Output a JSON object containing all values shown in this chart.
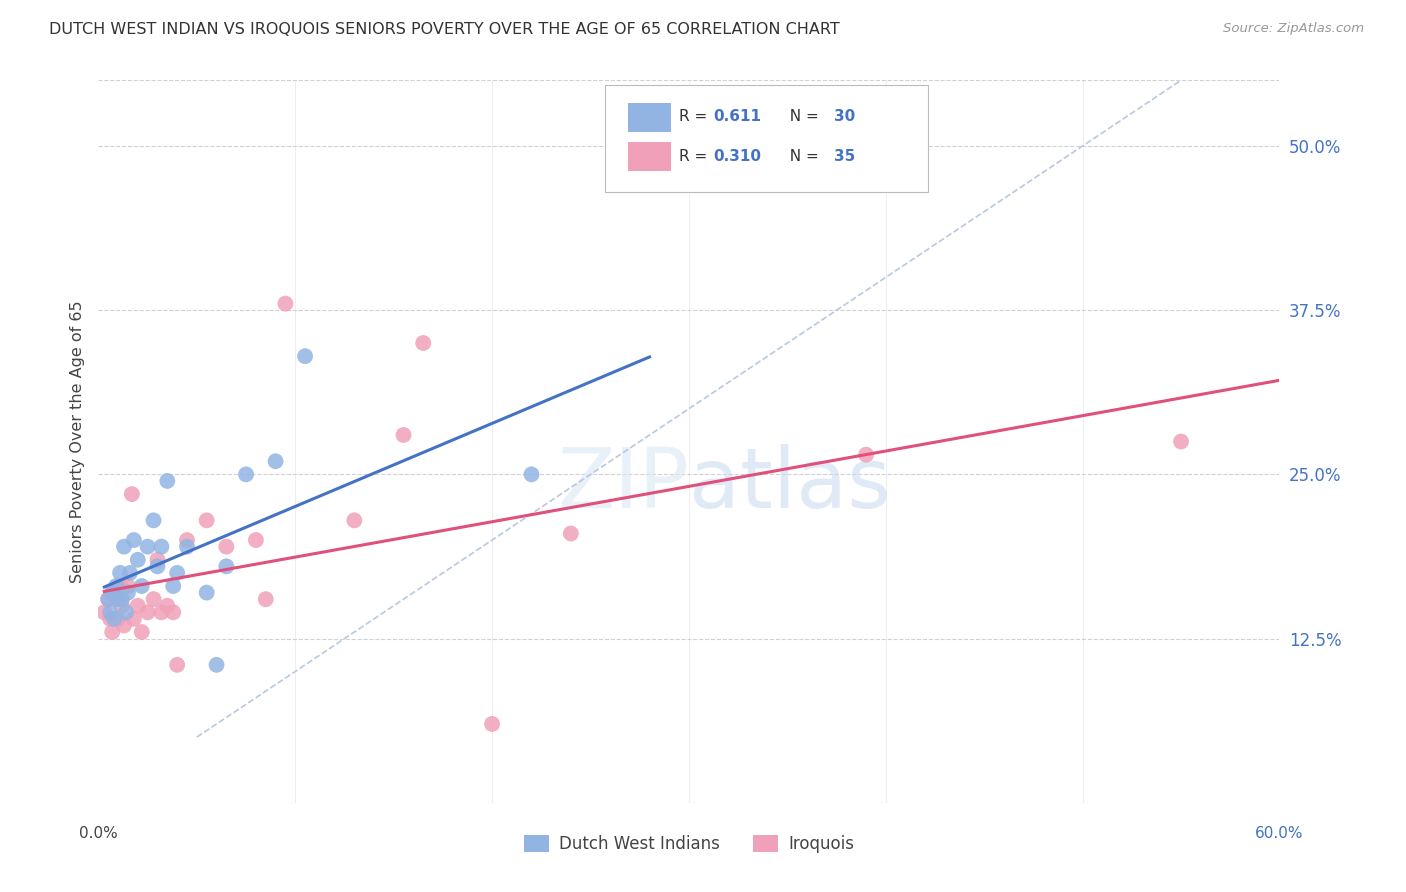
{
  "title": "DUTCH WEST INDIAN VS IROQUOIS SENIORS POVERTY OVER THE AGE OF 65 CORRELATION CHART",
  "source": "Source: ZipAtlas.com",
  "ylabel": "Seniors Poverty Over the Age of 65",
  "xlim": [
    0.0,
    0.6
  ],
  "ylim": [
    0.0,
    0.55
  ],
  "ytick_right_labels": [
    "12.5%",
    "25.0%",
    "37.5%",
    "50.0%"
  ],
  "ytick_right_values": [
    0.125,
    0.25,
    0.375,
    0.5
  ],
  "grid_color": "#d0d0d8",
  "background_color": "#ffffff",
  "dutch_color": "#92b4e3",
  "iroquois_color": "#f0a0b8",
  "dutch_line_color": "#4472c4",
  "iroquois_line_color": "#e0507a",
  "diag_line_color": "#b8c8e0",
  "legend_label1": "Dutch West Indians",
  "legend_label2": "Iroquois",
  "dutch_x": [
    0.005,
    0.006,
    0.007,
    0.008,
    0.009,
    0.01,
    0.011,
    0.012,
    0.013,
    0.014,
    0.015,
    0.016,
    0.018,
    0.02,
    0.022,
    0.025,
    0.028,
    0.03,
    0.032,
    0.035,
    0.038,
    0.04,
    0.045,
    0.055,
    0.06,
    0.065,
    0.075,
    0.09,
    0.105,
    0.22
  ],
  "dutch_y": [
    0.155,
    0.145,
    0.16,
    0.14,
    0.165,
    0.155,
    0.175,
    0.155,
    0.195,
    0.145,
    0.16,
    0.175,
    0.2,
    0.185,
    0.165,
    0.195,
    0.215,
    0.18,
    0.195,
    0.245,
    0.165,
    0.175,
    0.195,
    0.16,
    0.105,
    0.18,
    0.25,
    0.26,
    0.34,
    0.25
  ],
  "iroquois_x": [
    0.003,
    0.005,
    0.006,
    0.007,
    0.008,
    0.009,
    0.01,
    0.011,
    0.012,
    0.013,
    0.015,
    0.017,
    0.018,
    0.02,
    0.022,
    0.025,
    0.028,
    0.03,
    0.032,
    0.035,
    0.038,
    0.04,
    0.045,
    0.055,
    0.065,
    0.08,
    0.085,
    0.095,
    0.13,
    0.155,
    0.165,
    0.2,
    0.24,
    0.39,
    0.55
  ],
  "iroquois_y": [
    0.145,
    0.155,
    0.14,
    0.13,
    0.16,
    0.155,
    0.14,
    0.165,
    0.15,
    0.135,
    0.165,
    0.235,
    0.14,
    0.15,
    0.13,
    0.145,
    0.155,
    0.185,
    0.145,
    0.15,
    0.145,
    0.105,
    0.2,
    0.215,
    0.195,
    0.2,
    0.155,
    0.38,
    0.215,
    0.28,
    0.35,
    0.06,
    0.205,
    0.265,
    0.275
  ],
  "dutch_line_x": [
    0.003,
    0.28
  ],
  "iroquois_line_x": [
    0.003,
    0.6
  ],
  "diag_line_x": [
    0.05,
    0.55
  ],
  "diag_line_y": [
    0.05,
    0.55
  ]
}
